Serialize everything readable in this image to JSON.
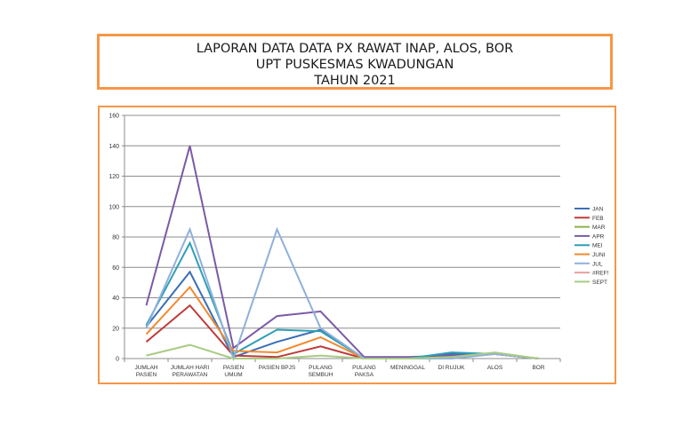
{
  "title": {
    "line1": "LAPORAN DATA DATA PX RAWAT INAP, ALOS, BOR",
    "line2": "UPT PUSKESMAS KWADUNGAN",
    "line3": "TAHUN 2021"
  },
  "chart_data": {
    "type": "line",
    "title": "LAPORAN DATA DATA PX RAWAT INAP, ALOS, BOR - UPT PUSKESMAS KWADUNGAN - TAHUN 2021",
    "xlabel": "",
    "ylabel": "",
    "ylim": [
      0,
      160
    ],
    "yticks": [
      0,
      20,
      40,
      60,
      80,
      100,
      120,
      140,
      160
    ],
    "grid": true,
    "legend_position": "right",
    "categories": [
      [
        "JUMLAH",
        "PASIEN"
      ],
      [
        "JUMLAH HARI",
        "PERAWATAN"
      ],
      [
        "PASIEN",
        "UMUM"
      ],
      [
        "PASIEN BPJS"
      ],
      [
        "PULANG",
        "SEMBUH"
      ],
      [
        "PULANG",
        "PAKSA"
      ],
      [
        "MENINGGAL"
      ],
      [
        "DI RUJUK"
      ],
      [
        "ALOS"
      ],
      [
        "BOR"
      ]
    ],
    "series": [
      {
        "name": "JAN",
        "color": "#3b6fb6",
        "values": [
          21,
          57,
          1,
          11,
          19,
          0,
          0,
          3,
          3,
          0
        ]
      },
      {
        "name": "FEB",
        "color": "#be3b3b",
        "values": [
          11,
          35,
          2,
          1,
          8,
          0,
          0,
          1,
          3,
          0
        ]
      },
      {
        "name": "MAR",
        "color": "#8db04a",
        "values": [
          null,
          null,
          null,
          null,
          null,
          null,
          null,
          null,
          null,
          null
        ]
      },
      {
        "name": "APR",
        "color": "#7a5aa6",
        "values": [
          35,
          140,
          7,
          28,
          31,
          1,
          1,
          2,
          3,
          0
        ]
      },
      {
        "name": "MEI",
        "color": "#2e9fb5",
        "values": [
          22,
          76,
          3,
          19,
          18,
          0,
          0,
          4,
          3,
          0
        ]
      },
      {
        "name": "JUNI",
        "color": "#f08a30",
        "values": [
          16,
          47,
          5,
          4,
          14,
          0,
          0,
          1,
          3,
          0
        ]
      },
      {
        "name": "JUL",
        "color": "#8fb0dc",
        "values": [
          20,
          85,
          0,
          85,
          20,
          0,
          0,
          0,
          3,
          0
        ]
      },
      {
        "name": "#REF!",
        "color": "#e8a0a0",
        "values": [
          null,
          null,
          null,
          null,
          null,
          null,
          null,
          null,
          null,
          null
        ]
      },
      {
        "name": "SEPT",
        "color": "#a8cc84",
        "values": [
          2,
          9,
          0,
          0,
          2,
          0,
          0,
          1,
          4,
          0
        ]
      }
    ]
  }
}
